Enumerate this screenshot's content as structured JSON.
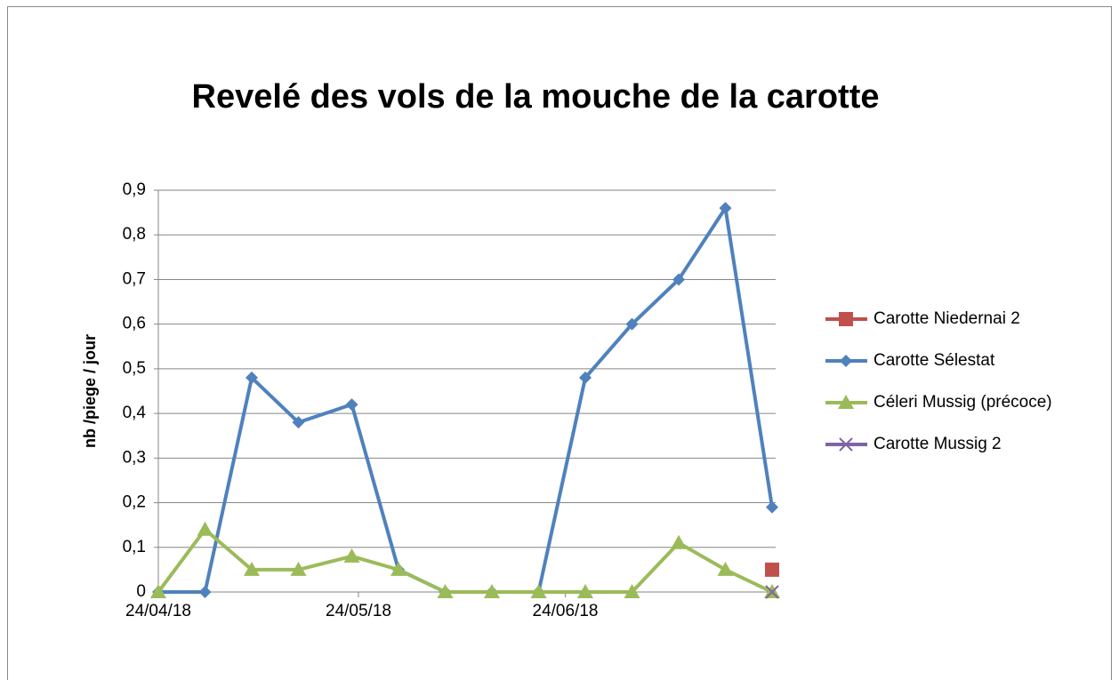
{
  "chart_data": {
    "type": "line",
    "title": "Revelé des vols de la mouche de la carotte",
    "y_label": "nb /piege / jour",
    "x": [
      "24/04/18",
      "01/05/18",
      "08/05/18",
      "15/05/18",
      "23/05/18",
      "30/05/18",
      "06/06/18",
      "13/06/18",
      "20/06/18",
      "27/06/18",
      "04/07/18",
      "11/07/18",
      "18/07/18",
      "25/07/18"
    ],
    "xlim": [
      "24/04/18",
      "25/07/18"
    ],
    "xticks": [
      "24/04/18",
      "24/05/18",
      "24/06/18"
    ],
    "ylim": [
      0,
      0.9
    ],
    "yticks": [
      0,
      {
        "value": 0.1,
        "label": "0,1"
      },
      {
        "value": 0.2,
        "label": "0,2"
      },
      {
        "value": 0.3,
        "label": "0,3"
      },
      {
        "value": 0.4,
        "label": "0,4"
      },
      {
        "value": 0.5,
        "label": "0,5"
      },
      {
        "value": 0.6,
        "label": "0,6"
      },
      {
        "value": 0.7,
        "label": "0,7"
      },
      {
        "value": 0.8,
        "label": "0,8"
      },
      {
        "value": 0.9,
        "label": "0,9"
      }
    ],
    "grid": true,
    "legend": "right",
    "series": [
      {
        "name": "Carotte Niedernai 2",
        "color": "#c0504d",
        "marker": "square",
        "values": [
          null,
          null,
          null,
          null,
          null,
          null,
          null,
          null,
          null,
          null,
          null,
          null,
          null,
          0.05
        ]
      },
      {
        "name": "Carotte Sélestat",
        "color": "#4f81bd",
        "marker": "diamond",
        "values": [
          0,
          0,
          0.48,
          0.38,
          0.42,
          0.05,
          0,
          0,
          0,
          0.48,
          0.6,
          0.7,
          0.86,
          0.19
        ]
      },
      {
        "name": "Céleri Mussig (précoce)",
        "color": "#9bbb59",
        "marker": "triangle",
        "values": [
          0,
          0.14,
          0.05,
          0.05,
          0.08,
          0.05,
          0,
          0,
          0,
          0,
          0,
          0.11,
          0.05,
          0
        ]
      },
      {
        "name": "Carotte Mussig 2",
        "color": "#8064a2",
        "marker": "x",
        "values": [
          null,
          null,
          null,
          null,
          null,
          null,
          null,
          null,
          null,
          null,
          null,
          null,
          null,
          0
        ]
      }
    ]
  }
}
